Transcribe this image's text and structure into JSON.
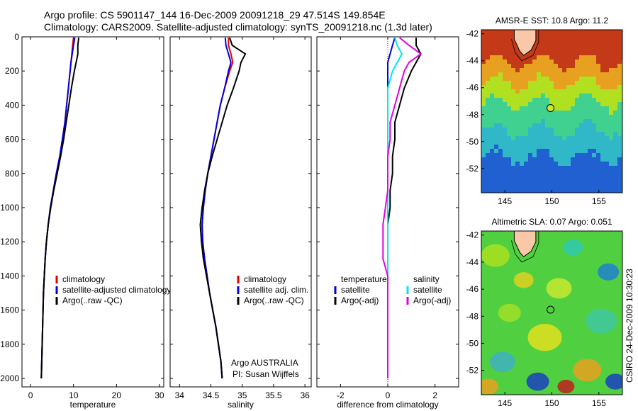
{
  "header": {
    "line1": "Argo profile: CS 5901147_144 16-Dec-2009 20091218_29 47.514S 149.854E",
    "line2": "Climatology: CARS2009. Satellite-adjusted climatology: synTS_20091218.nc (1.3d later)"
  },
  "footer": {
    "institution": "Argo AUSTRALIA",
    "pi": "PI: Susan Wijffels",
    "stamp": "CSIRO 24-Dec-2009 10:30:23"
  },
  "colors": {
    "climatology": "#e00000",
    "satellite": "#0000e0",
    "argo": "#000000",
    "salinity_satellite": "#00e8e8",
    "salinity_argo": "#e000e0"
  },
  "chart_data": [
    {
      "type": "line",
      "panel": "temperature",
      "xlabel": "temperature",
      "ylabel": "",
      "xlim": [
        -2,
        31
      ],
      "ylim": [
        2050,
        0
      ],
      "xticks": [
        0,
        10,
        20,
        30
      ],
      "yticks": [
        0,
        200,
        400,
        600,
        800,
        1000,
        1200,
        1400,
        1600,
        1800,
        2000
      ],
      "legend": [
        "climatology",
        "satellite-adjusted climatology",
        "Argo(..raw -QC)"
      ],
      "depth": [
        5,
        50,
        100,
        150,
        200,
        300,
        400,
        500,
        600,
        700,
        800,
        900,
        1000,
        1100,
        1200,
        1300,
        1400,
        1500,
        1600,
        1700,
        1800,
        1900,
        2000
      ],
      "series": [
        {
          "name": "climatology",
          "values": [
            10.0,
            9.8,
            9.6,
            9.4,
            9.2,
            8.8,
            8.4,
            8.0,
            7.4,
            6.8,
            6.0,
            5.3,
            4.6,
            4.1,
            3.7,
            3.4,
            3.2,
            3.0,
            2.9,
            2.8,
            2.7,
            2.6,
            2.5
          ]
        },
        {
          "name": "satellite-adjusted climatology",
          "values": [
            10.3,
            10.0,
            9.7,
            9.4,
            9.2,
            8.8,
            8.4,
            8.0,
            7.4,
            6.8,
            6.0,
            5.3,
            4.6,
            4.1,
            3.7,
            3.4,
            3.2,
            3.0,
            2.9,
            2.8,
            2.7,
            2.6,
            2.5
          ]
        },
        {
          "name": "Argo(..raw -QC)",
          "values": [
            11.2,
            11.0,
            11.0,
            10.6,
            10.2,
            9.5,
            8.9,
            8.3,
            7.7,
            7.0,
            6.2,
            5.4,
            4.7,
            4.1,
            3.7,
            3.4,
            3.2,
            3.0,
            2.9,
            2.8,
            2.7,
            2.6,
            2.5
          ]
        }
      ]
    },
    {
      "type": "line",
      "panel": "salinity",
      "xlabel": "salinity",
      "ylabel": "",
      "xlim": [
        33.85,
        36.1
      ],
      "ylim": [
        2050,
        0
      ],
      "xticks": [
        34,
        34.5,
        35,
        35.5,
        36
      ],
      "legend": [
        "climatology",
        "satellite adj. clim.",
        "Argo(..raw -QC)"
      ],
      "depth": [
        5,
        50,
        100,
        150,
        200,
        300,
        400,
        500,
        600,
        700,
        800,
        900,
        1000,
        1100,
        1200,
        1300,
        1400,
        1500,
        1600,
        1700,
        1800,
        1900,
        2000
      ],
      "series": [
        {
          "name": "climatology",
          "values": [
            34.78,
            34.78,
            34.82,
            34.85,
            34.8,
            34.72,
            34.65,
            34.6,
            34.55,
            34.5,
            34.45,
            34.41,
            34.38,
            34.36,
            34.37,
            34.4,
            34.44,
            34.48,
            34.53,
            34.58,
            34.62,
            34.66,
            34.68
          ]
        },
        {
          "name": "satellite adj. clim.",
          "values": [
            34.73,
            34.74,
            34.78,
            34.82,
            34.78,
            34.72,
            34.65,
            34.6,
            34.55,
            34.5,
            34.45,
            34.41,
            34.38,
            34.36,
            34.37,
            34.4,
            34.44,
            34.48,
            34.53,
            34.58,
            34.62,
            34.66,
            34.68
          ]
        },
        {
          "name": "Argo(..raw -QC)",
          "values": [
            34.8,
            34.84,
            35.05,
            34.98,
            34.95,
            34.86,
            34.76,
            34.68,
            34.6,
            34.52,
            34.45,
            34.4,
            34.36,
            34.33,
            34.35,
            34.38,
            34.43,
            34.48,
            34.53,
            34.58,
            34.62,
            34.66,
            34.68
          ]
        }
      ]
    },
    {
      "type": "line",
      "panel": "difference",
      "xlabel": "difference from climatology",
      "ylabel": "",
      "xlim": [
        -3,
        3
      ],
      "ylim": [
        2050,
        0
      ],
      "xticks": [
        -2,
        0,
        2
      ],
      "legend": [
        "temperature",
        "satellite",
        "Argo(-adj)",
        "salinity",
        "satellite",
        "Argo(-adj)"
      ],
      "depth": [
        5,
        50,
        100,
        150,
        200,
        300,
        400,
        500,
        600,
        700,
        800,
        900,
        1000,
        1100,
        1200,
        1300,
        1400,
        1500,
        1600,
        1700,
        1800,
        1900,
        2000
      ],
      "series": [
        {
          "name": "temperature satellite",
          "values": [
            0.3,
            0.2,
            0.1,
            0.0,
            0.0,
            0.0,
            0.0,
            0.0,
            0.0,
            0.0,
            0.0,
            0.0,
            0.0,
            0.0,
            0.0,
            0.0,
            0.0,
            0.0,
            0.0,
            0.0,
            0.0,
            0.0,
            0.0
          ]
        },
        {
          "name": "temperature Argo(-adj)",
          "values": [
            1.2,
            1.2,
            1.4,
            1.2,
            1.0,
            0.7,
            0.5,
            0.3,
            0.3,
            0.2,
            0.2,
            0.1,
            0.1,
            0.0,
            0.0,
            0.0,
            0.0,
            0.0,
            0.0,
            0.0,
            0.0,
            0.0,
            0.0
          ]
        },
        {
          "name": "salinity satellite",
          "values": [
            0.3,
            0.4,
            0.6,
            0.4,
            0.2,
            0.0,
            0.0,
            0.0,
            0.0,
            0.0,
            0.0,
            0.0,
            0.0,
            0.0,
            0.0,
            0.0,
            0.0,
            0.0,
            0.0,
            0.0,
            0.0,
            0.0,
            0.0
          ]
        },
        {
          "name": "salinity Argo(-adj)",
          "values": [
            0.5,
            0.9,
            1.4,
            0.9,
            0.7,
            0.5,
            0.3,
            0.1,
            0.1,
            0.0,
            0.0,
            0.0,
            -0.1,
            -0.2,
            -0.2,
            -0.2,
            0.0,
            0.0,
            0.0,
            0.0,
            0.0,
            0.0,
            0.0
          ]
        }
      ]
    },
    {
      "type": "heatmap",
      "panel": "sst-map",
      "title": "AMSR-E SST: 10.8 Argo: 11.2",
      "xlim": [
        142.5,
        157.5
      ],
      "ylim": [
        -53.8,
        -41.7
      ],
      "xticks": [
        145,
        150,
        155
      ],
      "yticks": [
        -42,
        -44,
        -46,
        -48,
        -50,
        -52
      ],
      "marker": {
        "lon": 149.854,
        "lat": -47.514
      },
      "bands": [
        {
          "lat_to": -44.0,
          "color": "#c43a18"
        },
        {
          "lat_to": -45.5,
          "color": "#e8a020"
        },
        {
          "lat_to": -47.0,
          "color": "#b0e020"
        },
        {
          "lat_to": -49.0,
          "color": "#40d090"
        },
        {
          "lat_to": -51.0,
          "color": "#30b8c8"
        },
        {
          "lat_to": -53.8,
          "color": "#2060d0"
        }
      ]
    },
    {
      "type": "heatmap",
      "panel": "sla-map",
      "title": "Altimetric SLA: 0.07 Argo: 0.051",
      "xlim": [
        142.5,
        157.5
      ],
      "ylim": [
        -53.8,
        -41.7
      ],
      "xticks": [
        145,
        150,
        155
      ],
      "yticks": [
        -42,
        -44,
        -46,
        -48,
        -50,
        -52
      ],
      "marker": {
        "lon": 149.854,
        "lat": -47.514
      }
    }
  ]
}
